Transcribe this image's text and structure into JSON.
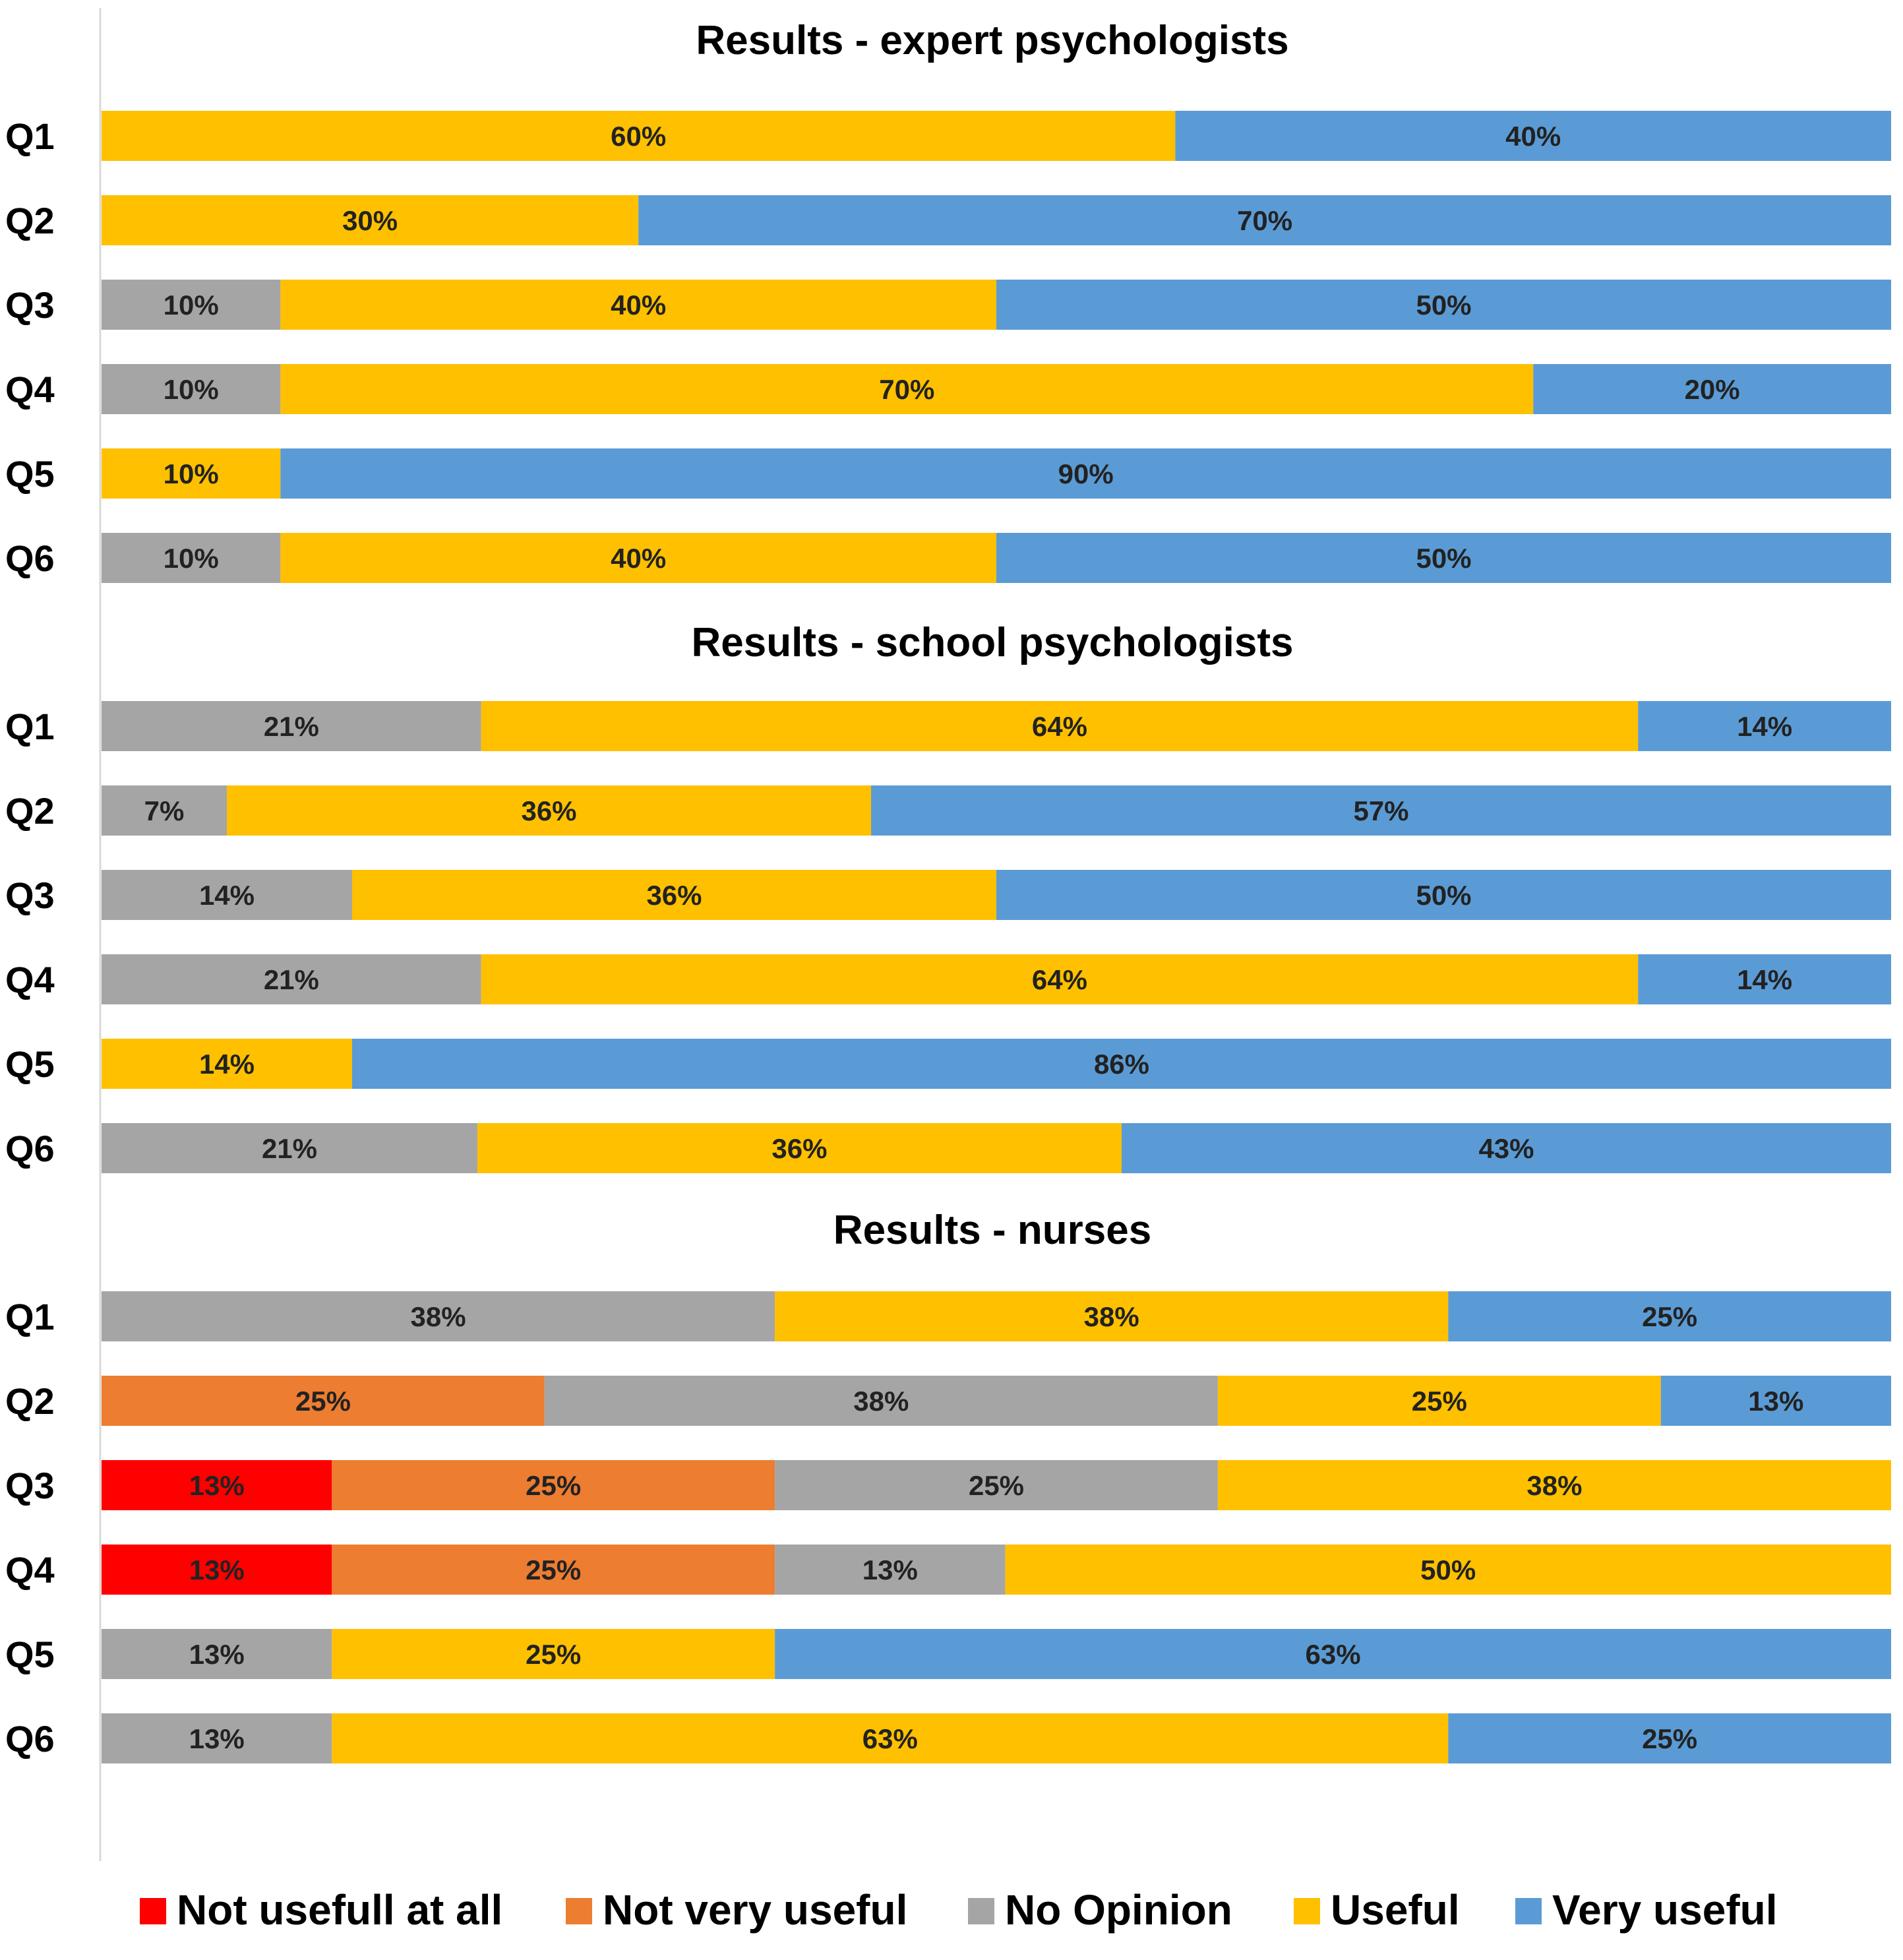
{
  "chart_data": {
    "type": "bar",
    "orientation": "horizontal",
    "stacked": true,
    "grid": false,
    "legend_position": "bottom",
    "series_colors": {
      "Not usefull at all": "#ff0000",
      "Not very useful": "#ed7d31",
      "No Opinion": "#a5a5a5",
      "Useful": "#ffc000",
      "Very useful": "#5b9bd5"
    },
    "legend": [
      "Not usefull at all",
      "Not very useful",
      "No Opinion",
      "Useful",
      "Very useful"
    ],
    "panels": [
      {
        "title": "Results - expert psychologists",
        "categories": [
          "Q1",
          "Q2",
          "Q3",
          "Q4",
          "Q5",
          "Q6"
        ],
        "series": [
          {
            "name": "Not usefull at all",
            "values": [
              0,
              0,
              0,
              0,
              0,
              0
            ]
          },
          {
            "name": "Not very useful",
            "values": [
              0,
              0,
              0,
              0,
              0,
              0
            ]
          },
          {
            "name": "No Opinion",
            "values": [
              0,
              0,
              10,
              10,
              0,
              10
            ]
          },
          {
            "name": "Useful",
            "values": [
              60,
              30,
              40,
              70,
              10,
              40
            ]
          },
          {
            "name": "Very useful",
            "values": [
              40,
              70,
              50,
              20,
              90,
              50
            ]
          }
        ]
      },
      {
        "title": "Results - school psychologists",
        "categories": [
          "Q1",
          "Q2",
          "Q3",
          "Q4",
          "Q5",
          "Q6"
        ],
        "series": [
          {
            "name": "Not usefull at all",
            "values": [
              0,
              0,
              0,
              0,
              0,
              0
            ]
          },
          {
            "name": "Not very useful",
            "values": [
              0,
              0,
              0,
              0,
              0,
              0
            ]
          },
          {
            "name": "No Opinion",
            "values": [
              21,
              7,
              14,
              21,
              0,
              21
            ]
          },
          {
            "name": "Useful",
            "values": [
              64,
              36,
              36,
              64,
              14,
              36
            ]
          },
          {
            "name": "Very useful",
            "values": [
              14,
              57,
              50,
              14,
              86,
              43
            ]
          }
        ]
      },
      {
        "title": "Results - nurses",
        "categories": [
          "Q1",
          "Q2",
          "Q3",
          "Q4",
          "Q5",
          "Q6"
        ],
        "series": [
          {
            "name": "Not usefull at all",
            "values": [
              0,
              0,
              13,
              13,
              0,
              0
            ]
          },
          {
            "name": "Not very useful",
            "values": [
              0,
              25,
              25,
              25,
              0,
              0
            ]
          },
          {
            "name": "No Opinion",
            "values": [
              38,
              38,
              25,
              13,
              13,
              13
            ]
          },
          {
            "name": "Useful",
            "values": [
              38,
              25,
              38,
              50,
              25,
              63
            ]
          },
          {
            "name": "Very useful",
            "values": [
              25,
              13,
              0,
              0,
              63,
              25
            ]
          }
        ]
      }
    ]
  }
}
